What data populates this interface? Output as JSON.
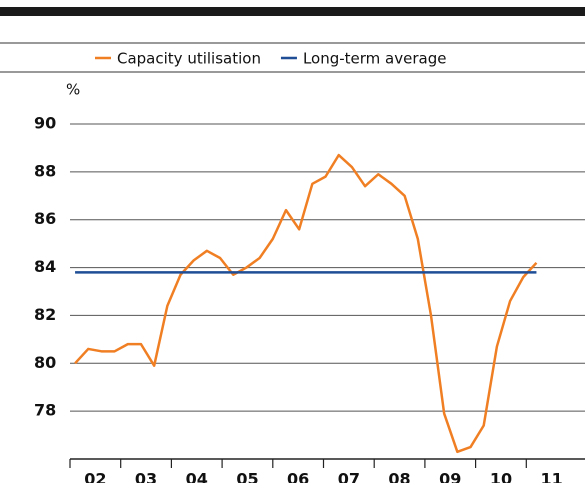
{
  "chart_data": {
    "type": "line",
    "y_label": "%",
    "x": [
      2002.1,
      2002.36,
      2002.62,
      2002.88,
      2003.14,
      2003.4,
      2003.66,
      2003.92,
      2004.18,
      2004.44,
      2004.7,
      2004.96,
      2005.22,
      2005.48,
      2005.74,
      2006.0,
      2006.26,
      2006.52,
      2006.78,
      2007.04,
      2007.3,
      2007.56,
      2007.82,
      2008.08,
      2008.34,
      2008.6,
      2008.86,
      2009.12,
      2009.38,
      2009.64,
      2009.9,
      2010.16,
      2010.42,
      2010.68,
      2010.94,
      2011.2
    ],
    "series": [
      {
        "name": "Capacity utilisation",
        "color": "#f07f24",
        "values": [
          80.0,
          80.6,
          80.5,
          80.5,
          80.8,
          80.8,
          79.9,
          82.4,
          83.7,
          84.3,
          84.7,
          84.4,
          83.7,
          84.0,
          84.4,
          85.2,
          86.4,
          85.6,
          87.5,
          87.8,
          88.7,
          88.2,
          87.4,
          87.9,
          87.5,
          87.0,
          85.2,
          82.0,
          77.9,
          76.3,
          76.5,
          77.4,
          80.7,
          82.6,
          83.6,
          84.2
        ]
      },
      {
        "name": "Long-term average",
        "color": "#1f4e96",
        "x": [
          2002.1,
          2011.2
        ],
        "values": [
          83.8,
          83.8
        ]
      }
    ],
    "xlim": [
      2002,
      2012
    ],
    "xticks": [
      {
        "value": 2002,
        "label": "02"
      },
      {
        "value": 2003,
        "label": "03"
      },
      {
        "value": 2004,
        "label": "04"
      },
      {
        "value": 2005,
        "label": "05"
      },
      {
        "value": 2006,
        "label": "06"
      },
      {
        "value": 2007,
        "label": "07"
      },
      {
        "value": 2008,
        "label": "08"
      },
      {
        "value": 2009,
        "label": "09"
      },
      {
        "value": 2010,
        "label": "10"
      },
      {
        "value": 2011,
        "label": "11"
      }
    ],
    "ylim": [
      76,
      90
    ],
    "yticks": [
      78,
      80,
      82,
      84,
      86,
      88,
      90
    ],
    "grid": true
  }
}
